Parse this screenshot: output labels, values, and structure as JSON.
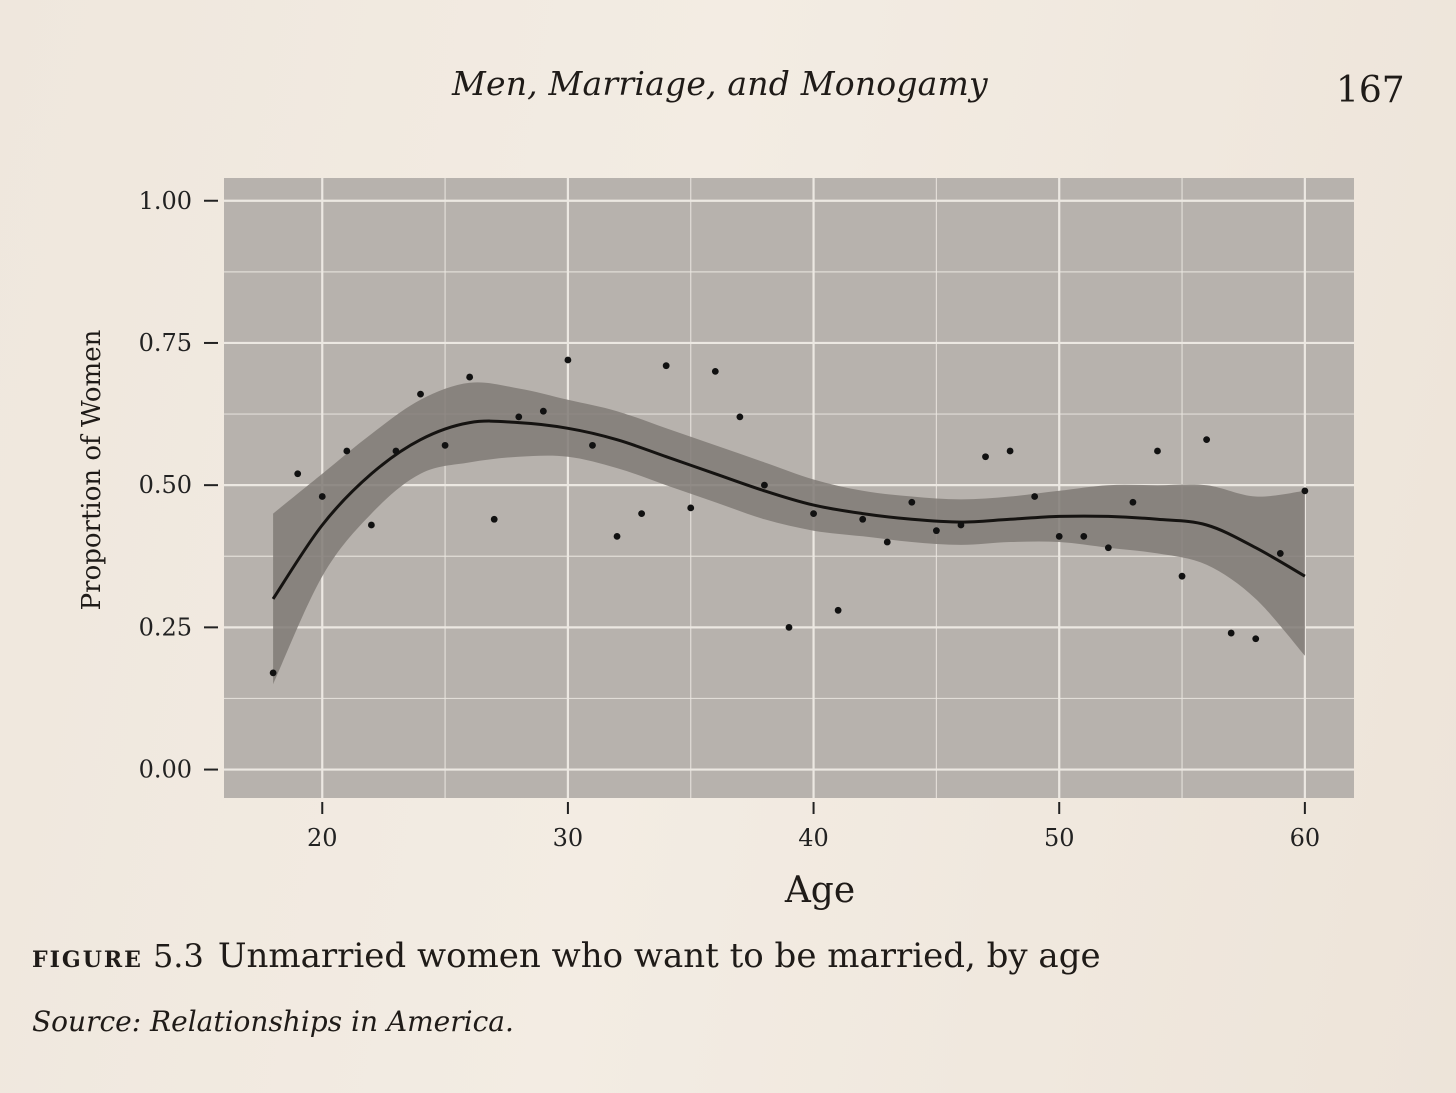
{
  "page": {
    "running_head": "Men, Marriage, and Monogamy",
    "page_number": "167"
  },
  "caption": {
    "label": "FIGURE",
    "number": "5.3",
    "text": "Unmarried women who want to be married, by age",
    "source": "Source: Relationships in America."
  },
  "colors": {
    "panel": "#b7b2ad",
    "grid": "#ece8e2",
    "band": "#807a75",
    "line": "#151311",
    "point": "#111111"
  },
  "chart_data": {
    "type": "scatter",
    "xlabel": "Age",
    "ylabel": "Proportion of Women",
    "xlim": [
      16,
      62
    ],
    "ylim": [
      -0.05,
      1.04
    ],
    "x_ticks": [
      "20",
      "30",
      "40",
      "50",
      "60"
    ],
    "y_ticks": [
      "0.00",
      "0.25",
      "0.50",
      "0.75",
      "1.00"
    ],
    "grid": true,
    "points": [
      {
        "x": 18,
        "y": 0.17
      },
      {
        "x": 19,
        "y": 0.52
      },
      {
        "x": 20,
        "y": 0.48
      },
      {
        "x": 21,
        "y": 0.56
      },
      {
        "x": 22,
        "y": 0.43
      },
      {
        "x": 23,
        "y": 0.56
      },
      {
        "x": 24,
        "y": 0.66
      },
      {
        "x": 25,
        "y": 0.57
      },
      {
        "x": 26,
        "y": 0.69
      },
      {
        "x": 27,
        "y": 0.44
      },
      {
        "x": 28,
        "y": 0.62
      },
      {
        "x": 29,
        "y": 0.63
      },
      {
        "x": 30,
        "y": 0.72
      },
      {
        "x": 31,
        "y": 0.57
      },
      {
        "x": 32,
        "y": 0.41
      },
      {
        "x": 33,
        "y": 0.45
      },
      {
        "x": 34,
        "y": 0.71
      },
      {
        "x": 35,
        "y": 0.46
      },
      {
        "x": 36,
        "y": 0.7
      },
      {
        "x": 37,
        "y": 0.62
      },
      {
        "x": 38,
        "y": 0.5
      },
      {
        "x": 39,
        "y": 0.25
      },
      {
        "x": 40,
        "y": 0.45
      },
      {
        "x": 41,
        "y": 0.28
      },
      {
        "x": 42,
        "y": 0.44
      },
      {
        "x": 43,
        "y": 0.4
      },
      {
        "x": 44,
        "y": 0.47
      },
      {
        "x": 45,
        "y": 0.42
      },
      {
        "x": 46,
        "y": 0.43
      },
      {
        "x": 47,
        "y": 0.55
      },
      {
        "x": 48,
        "y": 0.56
      },
      {
        "x": 49,
        "y": 0.48
      },
      {
        "x": 50,
        "y": 0.41
      },
      {
        "x": 51,
        "y": 0.41
      },
      {
        "x": 52,
        "y": 0.39
      },
      {
        "x": 53,
        "y": 0.47
      },
      {
        "x": 54,
        "y": 0.56
      },
      {
        "x": 55,
        "y": 0.34
      },
      {
        "x": 56,
        "y": 0.58
      },
      {
        "x": 57,
        "y": 0.24
      },
      {
        "x": 58,
        "y": 0.23
      },
      {
        "x": 59,
        "y": 0.38
      },
      {
        "x": 60,
        "y": 0.49
      }
    ],
    "fit": [
      {
        "x": 18,
        "y": 0.3,
        "lo": 0.15,
        "hi": 0.45
      },
      {
        "x": 20,
        "y": 0.43,
        "lo": 0.34,
        "hi": 0.52
      },
      {
        "x": 22,
        "y": 0.52,
        "lo": 0.45,
        "hi": 0.59
      },
      {
        "x": 24,
        "y": 0.58,
        "lo": 0.52,
        "hi": 0.65
      },
      {
        "x": 26,
        "y": 0.61,
        "lo": 0.54,
        "hi": 0.68
      },
      {
        "x": 28,
        "y": 0.61,
        "lo": 0.55,
        "hi": 0.67
      },
      {
        "x": 30,
        "y": 0.6,
        "lo": 0.55,
        "hi": 0.65
      },
      {
        "x": 32,
        "y": 0.58,
        "lo": 0.53,
        "hi": 0.63
      },
      {
        "x": 34,
        "y": 0.55,
        "lo": 0.5,
        "hi": 0.6
      },
      {
        "x": 36,
        "y": 0.52,
        "lo": 0.47,
        "hi": 0.57
      },
      {
        "x": 38,
        "y": 0.49,
        "lo": 0.44,
        "hi": 0.54
      },
      {
        "x": 40,
        "y": 0.465,
        "lo": 0.42,
        "hi": 0.51
      },
      {
        "x": 42,
        "y": 0.45,
        "lo": 0.41,
        "hi": 0.49
      },
      {
        "x": 44,
        "y": 0.44,
        "lo": 0.4,
        "hi": 0.48
      },
      {
        "x": 46,
        "y": 0.435,
        "lo": 0.395,
        "hi": 0.475
      },
      {
        "x": 48,
        "y": 0.44,
        "lo": 0.4,
        "hi": 0.48
      },
      {
        "x": 50,
        "y": 0.445,
        "lo": 0.4,
        "hi": 0.49
      },
      {
        "x": 52,
        "y": 0.445,
        "lo": 0.39,
        "hi": 0.5
      },
      {
        "x": 54,
        "y": 0.44,
        "lo": 0.38,
        "hi": 0.5
      },
      {
        "x": 56,
        "y": 0.43,
        "lo": 0.36,
        "hi": 0.5
      },
      {
        "x": 58,
        "y": 0.39,
        "lo": 0.3,
        "hi": 0.48
      },
      {
        "x": 60,
        "y": 0.34,
        "lo": 0.2,
        "hi": 0.49
      }
    ]
  }
}
